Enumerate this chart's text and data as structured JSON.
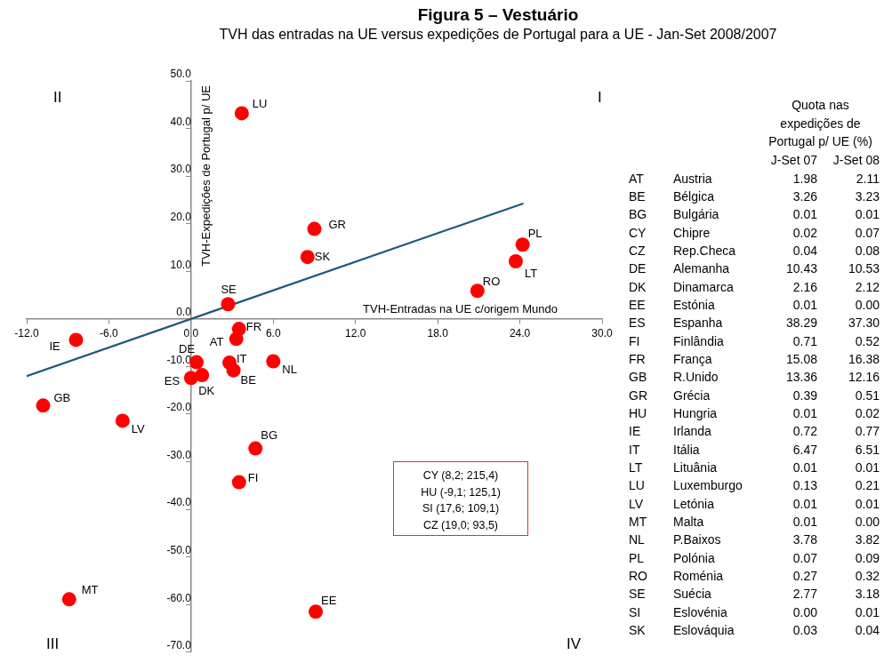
{
  "chart_data": [
    {
      "type": "scatter",
      "title": "Figura 5 – Vestuário",
      "subtitle": "TVH das entradas na UE versus expedições de Portugal para a UE - Jan-Set 2008/2007",
      "xlabel": "TVH-Entradas na UE c/origem Mundo",
      "ylabel": "TVH-Expedições de Portugal p/ UE",
      "xlim": [
        -12,
        30
      ],
      "xticks": [
        {
          "value": -12,
          "label": "-12.0"
        },
        {
          "value": -6,
          "label": "-6.0"
        },
        {
          "value": 0,
          "label": "0.0"
        },
        {
          "value": 6,
          "label": "6.0"
        },
        {
          "value": 12,
          "label": "12.0"
        },
        {
          "value": 18,
          "label": "18.0"
        },
        {
          "value": 24,
          "label": "24.0"
        },
        {
          "value": 30,
          "label": "30.0"
        }
      ],
      "ylim": [
        -70,
        50
      ],
      "yticks": [
        {
          "value": -70,
          "label": "-70.0"
        },
        {
          "value": -60,
          "label": "-60.0"
        },
        {
          "value": -50,
          "label": "-50.0"
        },
        {
          "value": -40,
          "label": "-40.0"
        },
        {
          "value": -30,
          "label": "-30.0"
        },
        {
          "value": -20,
          "label": "-20.0"
        },
        {
          "value": -10,
          "label": "-10.0"
        },
        {
          "value": 0,
          "label": "0.0"
        },
        {
          "value": 10,
          "label": "10.0"
        },
        {
          "value": 20,
          "label": "20.0"
        },
        {
          "value": 30,
          "label": "30.0"
        },
        {
          "value": 40,
          "label": "40.0"
        },
        {
          "value": 50,
          "label": "50.0"
        }
      ],
      "grid": false,
      "legend": false,
      "marker": "circle",
      "series": [
        {
          "name": "LU",
          "color": "#ff0000",
          "x": [
            3.7
          ],
          "values": [
            43.2
          ]
        },
        {
          "name": "GR",
          "color": "#ff0000",
          "x": [
            9.0
          ],
          "values": [
            18.9
          ]
        },
        {
          "name": "SK",
          "color": "#ff0000",
          "x": [
            8.5
          ],
          "values": [
            13.0
          ]
        },
        {
          "name": "PL",
          "color": "#ff0000",
          "x": [
            24.2
          ],
          "values": [
            15.6
          ]
        },
        {
          "name": "LT",
          "color": "#ff0000",
          "x": [
            23.7
          ],
          "values": [
            12.1
          ]
        },
        {
          "name": "RO",
          "color": "#ff0000",
          "x": [
            20.9
          ],
          "values": [
            5.9
          ]
        },
        {
          "name": "SE",
          "color": "#ff0000",
          "x": [
            2.7
          ],
          "values": [
            3.1
          ]
        },
        {
          "name": "FR",
          "color": "#ff0000",
          "x": [
            3.5
          ],
          "values": [
            -2.1
          ]
        },
        {
          "name": "AT",
          "color": "#ff0000",
          "x": [
            3.3
          ],
          "values": [
            -4.2
          ]
        },
        {
          "name": "IE",
          "color": "#ff0000",
          "x": [
            -8.4
          ],
          "values": [
            -4.4
          ]
        },
        {
          "name": "DE",
          "color": "#ff0000",
          "x": [
            0.4
          ],
          "values": [
            -9.1
          ]
        },
        {
          "name": "IT",
          "color": "#ff0000",
          "x": [
            2.8
          ],
          "values": [
            -9.2
          ]
        },
        {
          "name": "NL",
          "color": "#ff0000",
          "x": [
            6.0
          ],
          "values": [
            -8.9
          ]
        },
        {
          "name": "BE",
          "color": "#ff0000",
          "x": [
            3.1
          ],
          "values": [
            -10.8
          ]
        },
        {
          "name": "DK",
          "color": "#ff0000",
          "x": [
            0.8
          ],
          "values": [
            -11.8
          ]
        },
        {
          "name": "ES",
          "color": "#ff0000",
          "x": [
            0.0
          ],
          "values": [
            -12.4
          ]
        },
        {
          "name": "GB",
          "color": "#ff0000",
          "x": [
            -10.8
          ],
          "values": [
            -18.2
          ]
        },
        {
          "name": "LV",
          "color": "#ff0000",
          "x": [
            -5.0
          ],
          "values": [
            -21.4
          ]
        },
        {
          "name": "BG",
          "color": "#ff0000",
          "x": [
            4.7
          ],
          "values": [
            -27.2
          ]
        },
        {
          "name": "FI",
          "color": "#ff0000",
          "x": [
            3.5
          ],
          "values": [
            -34.3
          ]
        },
        {
          "name": "MT",
          "color": "#ff0000",
          "x": [
            -8.9
          ],
          "values": [
            -58.9
          ]
        },
        {
          "name": "EE",
          "color": "#ff0000",
          "x": [
            9.1
          ],
          "values": [
            -61.5
          ]
        },
        {
          "type": "line",
          "color": "#1f5a7a",
          "marker": "none",
          "x": [
            -12,
            24.2
          ],
          "values": [
            -12,
            24.2
          ]
        }
      ],
      "annotations": [
        "I",
        "II",
        "III",
        "IV",
        "CY (8,2; 215,4)",
        "HU (-9,1; 125,1)",
        "SI (17,6; 109,1)",
        "CZ (19,0; 93,5)"
      ]
    },
    {
      "type": "other",
      "title": "Quota nas expedições de Portugal p/ UE (%)",
      "annotations": [
        "J-Set 07",
        "J-Set 08",
        "AT",
        "Austria",
        "1.98",
        "2.11",
        "BE",
        "Bélgica",
        "3.26",
        "3.23",
        "BG",
        "Bulgária",
        "0.01",
        "0.01",
        "CY",
        "Chipre",
        "0.02",
        "0.07",
        "CZ",
        "Rep.Checa",
        "0.04",
        "0.08",
        "DE",
        "Alemanha",
        "10.43",
        "10.53",
        "DK",
        "Dinamarca",
        "2.16",
        "2.12",
        "EE",
        "Estónia",
        "0.01",
        "0.00",
        "ES",
        "Espanha",
        "38.29",
        "37.30",
        "FI",
        "Finlândia",
        "0.71",
        "0.52",
        "FR",
        "França",
        "15.08",
        "16.38",
        "GB",
        "R.Unido",
        "13.36",
        "12.16",
        "GR",
        "Grécia",
        "0.39",
        "0.51",
        "HU",
        "Hungria",
        "0.01",
        "0.02",
        "IE",
        "Irlanda",
        "0.72",
        "0.77",
        "IT",
        "Itália",
        "6.47",
        "6.51",
        "LT",
        "Lituânia",
        "0.01",
        "0.01",
        "LU",
        "Luxemburgo",
        "0.13",
        "0.21",
        "LV",
        "Letónia",
        "0.01",
        "0.01",
        "MT",
        "Malta",
        "0.01",
        "0.00",
        "NL",
        "P.Baixos",
        "3.78",
        "3.82",
        "PL",
        "Polónia",
        "0.07",
        "0.09",
        "RO",
        "Roménia",
        "0.27",
        "0.32",
        "SE",
        "Suécia",
        "2.77",
        "3.18",
        "SI",
        "Eslovénia",
        "0.00",
        "0.01",
        "SK",
        "Eslováquia",
        "0.03",
        "0.04"
      ]
    }
  ]
}
